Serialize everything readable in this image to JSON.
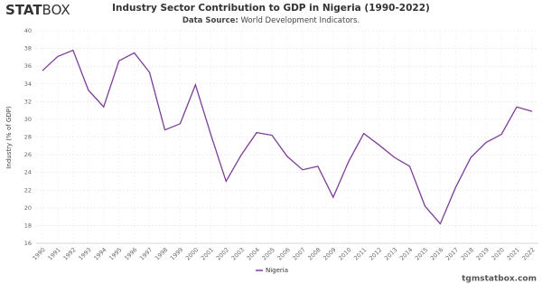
{
  "header": {
    "logo_bold": "STAT",
    "logo_light": "BOX"
  },
  "chart_data": {
    "type": "line",
    "title": "Industry Sector Contribution to GDP in Nigeria (1990-2022)",
    "subtitle_label": "Data Source:",
    "subtitle": "World Development Indicators.",
    "y_label": "Industry (% of GDP)",
    "categories": [
      "1990",
      "1991",
      "1992",
      "1993",
      "1994",
      "1995",
      "1996",
      "1997",
      "1998",
      "1999",
      "2000",
      "2001",
      "2002",
      "2003",
      "2004",
      "2005",
      "2006",
      "2007",
      "2008",
      "2009",
      "2010",
      "2011",
      "2012",
      "2013",
      "2014",
      "2015",
      "2016",
      "2017",
      "2018",
      "2019",
      "2020",
      "2021",
      "2022"
    ],
    "series": [
      {
        "name": "Nigeria",
        "color": "#7d3c98",
        "values": [
          35.5,
          37.1,
          37.8,
          33.3,
          31.4,
          36.6,
          37.5,
          35.3,
          28.8,
          29.5,
          33.9,
          28.3,
          23.0,
          26.0,
          28.5,
          28.2,
          25.8,
          24.3,
          24.7,
          21.2,
          25.2,
          28.4,
          27.1,
          25.7,
          24.7,
          20.2,
          18.2,
          22.3,
          25.7,
          27.4,
          28.3,
          31.4,
          30.9
        ]
      }
    ],
    "ylim": [
      16,
      40
    ],
    "yticks": [
      16,
      18,
      20,
      22,
      24,
      26,
      28,
      30,
      32,
      34,
      36,
      38,
      40
    ],
    "grid": true
  },
  "footer": "tgmstatbox.com"
}
